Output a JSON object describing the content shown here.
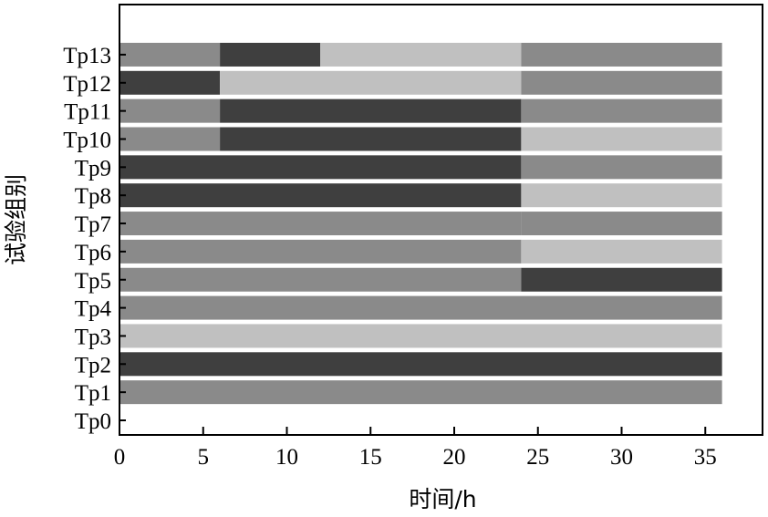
{
  "chart_data": {
    "type": "bar",
    "orientation": "horizontal-stacked",
    "xlabel": "时间/h",
    "ylabel": "试验组别",
    "xlim": [
      0,
      38
    ],
    "xticks": [
      0,
      5,
      10,
      15,
      20,
      25,
      30,
      35
    ],
    "categories": [
      "Tp0",
      "Tp1",
      "Tp2",
      "Tp3",
      "Tp4",
      "Tp5",
      "Tp6",
      "Tp7",
      "Tp8",
      "Tp9",
      "Tp10",
      "Tp11",
      "Tp12",
      "Tp13"
    ],
    "colors": {
      "dark": "#3f3f3f",
      "medium": "#8a8a8a",
      "light": "#c0c0c0"
    },
    "segments": [
      [],
      [
        {
          "start": 0,
          "end": 36,
          "color": "medium"
        }
      ],
      [
        {
          "start": 0,
          "end": 36,
          "color": "dark"
        }
      ],
      [
        {
          "start": 0,
          "end": 36,
          "color": "light"
        }
      ],
      [
        {
          "start": 0,
          "end": 36,
          "color": "medium"
        }
      ],
      [
        {
          "start": 0,
          "end": 24,
          "color": "medium"
        },
        {
          "start": 24,
          "end": 36,
          "color": "dark"
        }
      ],
      [
        {
          "start": 0,
          "end": 24,
          "color": "medium"
        },
        {
          "start": 24,
          "end": 36,
          "color": "light"
        }
      ],
      [
        {
          "start": 0,
          "end": 24,
          "color": "medium"
        },
        {
          "start": 24,
          "end": 36,
          "color": "medium"
        }
      ],
      [
        {
          "start": 0,
          "end": 24,
          "color": "dark"
        },
        {
          "start": 24,
          "end": 36,
          "color": "light"
        }
      ],
      [
        {
          "start": 0,
          "end": 24,
          "color": "dark"
        },
        {
          "start": 24,
          "end": 36,
          "color": "medium"
        }
      ],
      [
        {
          "start": 0,
          "end": 6,
          "color": "medium"
        },
        {
          "start": 6,
          "end": 24,
          "color": "dark"
        },
        {
          "start": 24,
          "end": 36,
          "color": "light"
        }
      ],
      [
        {
          "start": 0,
          "end": 6,
          "color": "medium"
        },
        {
          "start": 6,
          "end": 24,
          "color": "dark"
        },
        {
          "start": 24,
          "end": 36,
          "color": "medium"
        }
      ],
      [
        {
          "start": 0,
          "end": 6,
          "color": "dark"
        },
        {
          "start": 6,
          "end": 24,
          "color": "light"
        },
        {
          "start": 24,
          "end": 36,
          "color": "medium"
        }
      ],
      [
        {
          "start": 0,
          "end": 6,
          "color": "medium"
        },
        {
          "start": 6,
          "end": 12,
          "color": "dark"
        },
        {
          "start": 12,
          "end": 24,
          "color": "light"
        },
        {
          "start": 24,
          "end": 36,
          "color": "medium"
        }
      ]
    ]
  }
}
